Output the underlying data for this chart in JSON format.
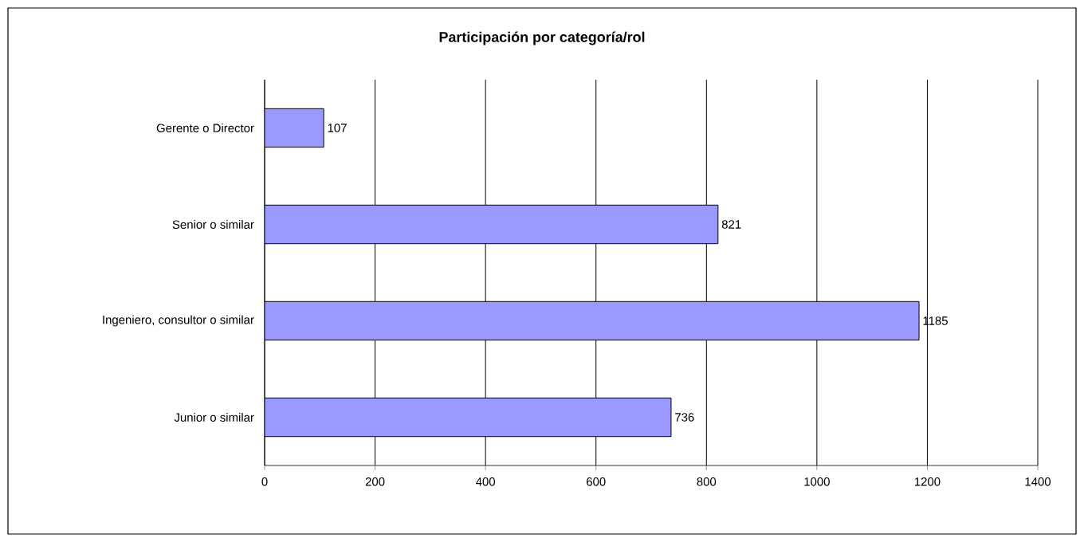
{
  "chart_data": {
    "type": "bar",
    "orientation": "horizontal",
    "title": "Participación por categoría/rol",
    "categories": [
      "Gerente o Director",
      "Senior o similar",
      "Ingeniero, consultor o similar",
      "Junior o similar"
    ],
    "values": [
      107,
      821,
      1185,
      736
    ],
    "color": "#9999ff",
    "xlim": [
      0,
      1400
    ],
    "xticks": [
      0,
      200,
      400,
      600,
      800,
      1000,
      1200,
      1400
    ],
    "grid": "x",
    "data_labels": true
  }
}
